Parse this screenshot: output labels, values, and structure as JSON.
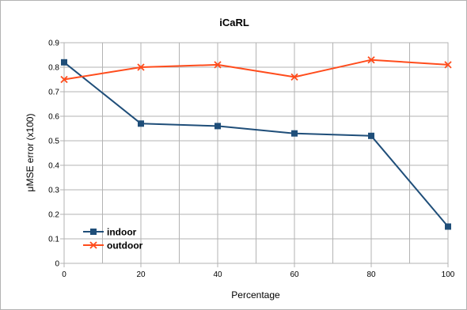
{
  "chart_data": {
    "type": "line",
    "title": "iCaRL",
    "xlabel": "Percentage",
    "ylabel": "μMSE error (x100)",
    "x": [
      0,
      20,
      40,
      60,
      80,
      100
    ],
    "xlim": [
      0,
      100
    ],
    "ylim": [
      0,
      0.9
    ],
    "x_ticks": [
      "0",
      "20",
      "40",
      "60",
      "80",
      "100"
    ],
    "y_ticks": [
      "0",
      "0.1",
      "0.2",
      "0.3",
      "0.4",
      "0.5",
      "0.6",
      "0.7",
      "0.8",
      "0.9"
    ],
    "grid": true,
    "legend_position": "bottom-left",
    "series": [
      {
        "name": "indoor",
        "color": "#1f4e79",
        "marker": "square",
        "values": [
          0.82,
          0.57,
          0.56,
          0.53,
          0.52,
          0.15
        ]
      },
      {
        "name": "outdoor",
        "color": "#ff4c1c",
        "marker": "x",
        "values": [
          0.75,
          0.8,
          0.81,
          0.76,
          0.83,
          0.81
        ]
      }
    ]
  }
}
